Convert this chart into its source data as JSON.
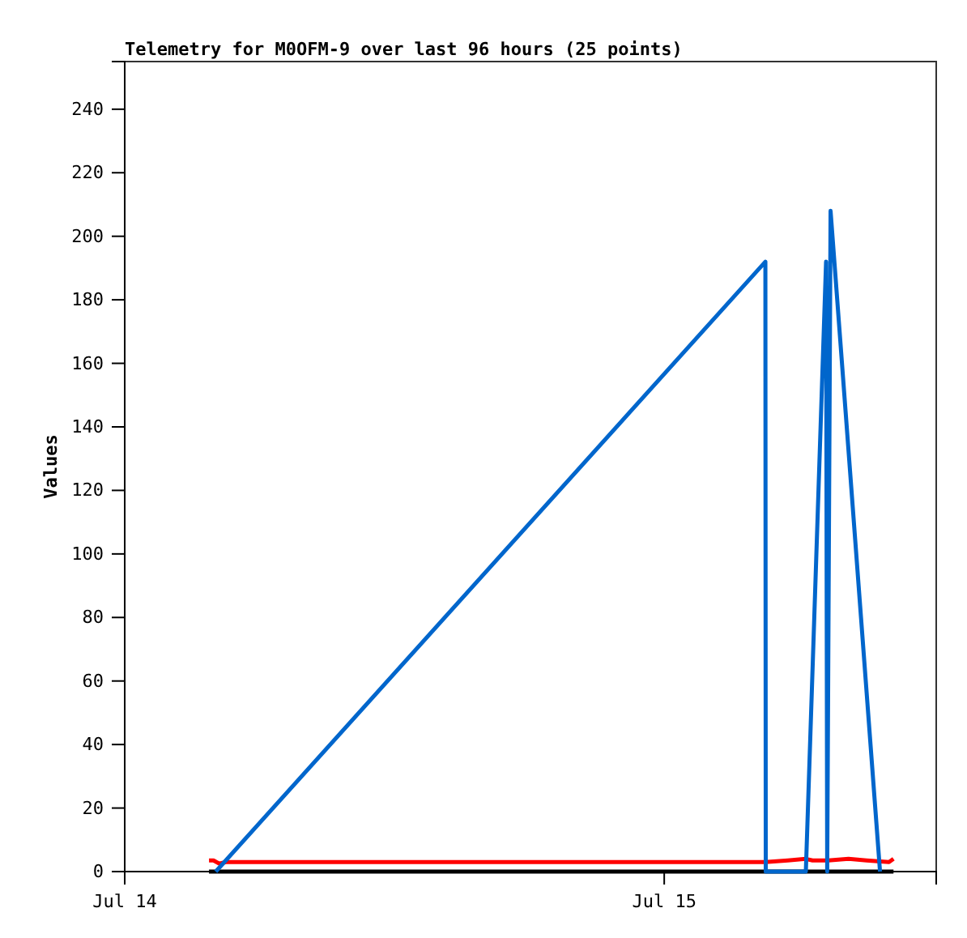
{
  "chart_data": {
    "type": "line",
    "title": "Telemetry for M0OFM-9 over last 96 hours (25 points)",
    "ylabel": "Values",
    "xlim": [
      "--07-14T00:00",
      "--07-15T12:06"
    ],
    "xticks": [
      {
        "value": "--07-14",
        "label": "Jul 14"
      },
      {
        "value": "--07-15",
        "label": "Jul 15"
      }
    ],
    "ylim": [
      0,
      255
    ],
    "yticks": [
      0,
      20,
      40,
      60,
      80,
      100,
      120,
      140,
      160,
      180,
      200,
      220,
      240
    ],
    "marker": "none",
    "line_style": "solid",
    "series": [
      {
        "color": "#000000",
        "x": [
          "--07-14T03:45",
          "--07-15T10:12"
        ],
        "values": [
          0,
          0
        ]
      },
      {
        "color": "#ff0000",
        "x": [
          "--07-14T03:45",
          "--07-14T03:57",
          "--07-14T04:12",
          "--07-14T04:30",
          "--07-15T04:30",
          "--07-15T05:30",
          "--07-15T06:18",
          "--07-15T06:36",
          "--07-15T07:18",
          "--07-15T08:12",
          "--07-15T09:00",
          "--07-15T10:00",
          "--07-15T10:12"
        ],
        "values": [
          3.5,
          3.5,
          2.5,
          3,
          3,
          3.5,
          4,
          3.5,
          3.5,
          4,
          3.5,
          3,
          4
        ]
      },
      {
        "color": "#0066cc",
        "x": [
          "--07-14T04:03",
          "--07-15T04:30",
          "--07-15T04:31",
          "--07-15T06:18",
          "--07-15T07:12",
          "--07-15T07:15",
          "--07-15T07:24",
          "--07-15T09:36"
        ],
        "values": [
          0,
          192,
          0,
          0,
          192,
          0,
          208,
          0
        ]
      }
    ]
  }
}
